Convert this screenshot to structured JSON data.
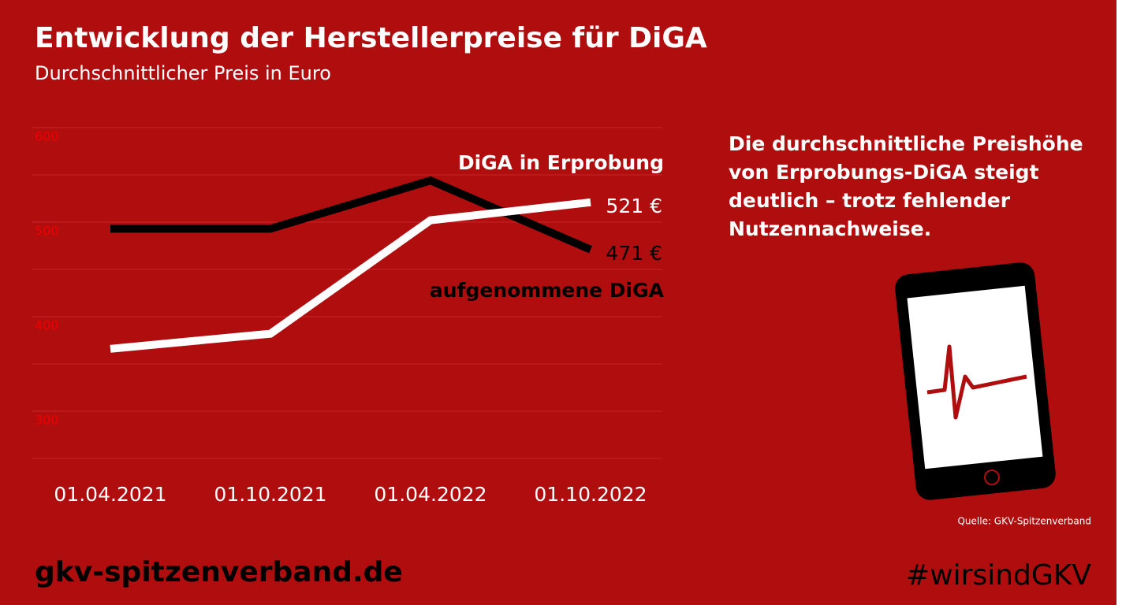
{
  "chart_data": {
    "type": "line",
    "title": "Entwicklung der Herstellerpreise für DiGA",
    "subtitle": "Durchschnittlicher Preis in Euro",
    "categories": [
      "01.04.2021",
      "01.10.2021",
      "01.04.2022",
      "01.10.2022"
    ],
    "series": [
      {
        "name": "aufgenommene DiGA",
        "color": "#000000",
        "values": [
          493,
          493,
          544,
          471
        ],
        "value_labels": [
          null,
          null,
          null,
          "471 €"
        ]
      },
      {
        "name": "DiGA in Erprobung",
        "color": "#ffffff",
        "values": [
          366,
          382,
          502,
          521
        ],
        "value_labels": [
          null,
          null,
          null,
          "521 €"
        ]
      }
    ],
    "ylim": [
      250,
      600
    ],
    "yticks": [
      300,
      400,
      500,
      600
    ],
    "yminorticks": [
      250,
      350,
      450,
      550
    ],
    "grid": true,
    "annotation": "Die durchschnittliche Preishöhe von Erprobungs-DiGA steigt deutlich – trotz fehlender Nutzennachweise.",
    "source": "Quelle: GKV-Spitzenverband",
    "footer_left": "gkv-spitzenverband.de",
    "footer_right": "#wirsindGKV"
  }
}
